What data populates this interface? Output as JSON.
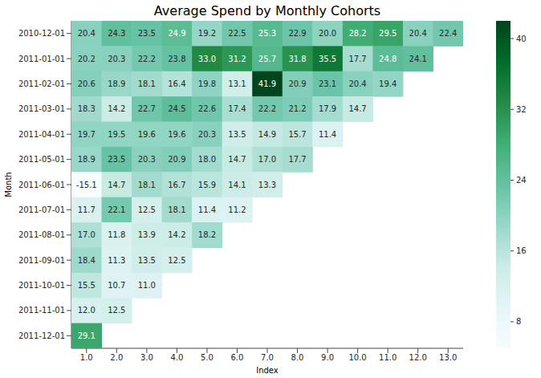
{
  "chart_data": {
    "type": "heatmap",
    "title": "Average Spend by Monthly Cohorts",
    "x_label": "Index",
    "y_label": "Month",
    "x_categories": [
      "1.0",
      "2.0",
      "3.0",
      "4.0",
      "5.0",
      "6.0",
      "7.0",
      "8.0",
      "9.0",
      "10.0",
      "11.0",
      "12.0",
      "13.0"
    ],
    "y_categories": [
      "2010-12-01",
      "2011-01-01",
      "2011-02-01",
      "2011-03-01",
      "2011-04-01",
      "2011-05-01",
      "2011-06-01",
      "2011-07-01",
      "2011-08-01",
      "2011-09-01",
      "2011-10-01",
      "2011-11-01",
      "2011-12-01"
    ],
    "values": [
      [
        20.4,
        24.3,
        23.5,
        24.9,
        19.2,
        22.5,
        25.3,
        22.9,
        20.0,
        28.2,
        29.5,
        20.4,
        22.4
      ],
      [
        20.2,
        20.3,
        22.2,
        23.8,
        33.0,
        31.2,
        25.7,
        31.8,
        35.5,
        17.7,
        24.8,
        24.1
      ],
      [
        20.6,
        18.9,
        18.1,
        16.4,
        19.8,
        13.1,
        41.9,
        20.9,
        23.1,
        20.4,
        19.4
      ],
      [
        18.3,
        14.2,
        22.7,
        24.5,
        22.6,
        17.4,
        22.2,
        21.2,
        17.9,
        14.7
      ],
      [
        19.7,
        19.5,
        19.6,
        19.6,
        20.3,
        13.5,
        14.9,
        15.7,
        11.4
      ],
      [
        18.9,
        23.5,
        20.3,
        20.9,
        18.0,
        14.7,
        17.0,
        17.7
      ],
      [
        -15.1,
        14.7,
        18.1,
        16.7,
        15.9,
        14.1,
        13.3
      ],
      [
        11.7,
        22.1,
        12.5,
        18.1,
        11.4,
        11.2
      ],
      [
        17.0,
        11.8,
        13.9,
        14.2,
        18.2
      ],
      [
        18.4,
        11.3,
        13.5,
        12.5
      ],
      [
        15.5,
        10.7,
        11.0
      ],
      [
        12.0,
        12.5
      ],
      [
        29.1
      ]
    ],
    "value_labels": [
      [
        "20.4",
        "24.3",
        "23.5",
        "24.9",
        "19.2",
        "22.5",
        "25.3",
        "22.9",
        "20.0",
        "28.2",
        "29.5",
        "20.4",
        "22.4"
      ],
      [
        "20.2",
        "20.3",
        "22.2",
        "23.8",
        "33.0",
        "31.2",
        "25.7",
        "31.8",
        "35.5",
        "17.7",
        "24.8",
        "24.1"
      ],
      [
        "20.6",
        "18.9",
        "18.1",
        "16.4",
        "19.8",
        "13.1",
        "41.9",
        "20.9",
        "23.1",
        "20.4",
        "19.4"
      ],
      [
        "18.3",
        "14.2",
        "22.7",
        "24.5",
        "22.6",
        "17.4",
        "22.2",
        "21.2",
        "17.9",
        "14.7"
      ],
      [
        "19.7",
        "19.5",
        "19.6",
        "19.6",
        "20.3",
        "13.5",
        "14.9",
        "15.7",
        "11.4"
      ],
      [
        "18.9",
        "23.5",
        "20.3",
        "20.9",
        "18.0",
        "14.7",
        "17.0",
        "17.7"
      ],
      [
        "-15.1",
        "14.7",
        "18.1",
        "16.7",
        "15.9",
        "14.1",
        "13.3"
      ],
      [
        "11.7",
        "22.1",
        "12.5",
        "18.1",
        "11.4",
        "11.2"
      ],
      [
        "17.0",
        "11.8",
        "13.9",
        "14.2",
        "18.2"
      ],
      [
        "18.4",
        "11.3",
        "13.5",
        "12.5"
      ],
      [
        "15.5",
        "10.7",
        "11.0"
      ],
      [
        "12.0",
        "12.5"
      ],
      [
        "29.1"
      ]
    ],
    "data_labels": true,
    "colorbar": {
      "range": [
        5,
        42
      ],
      "ticks": [
        8,
        16,
        24,
        32,
        40
      ]
    }
  }
}
